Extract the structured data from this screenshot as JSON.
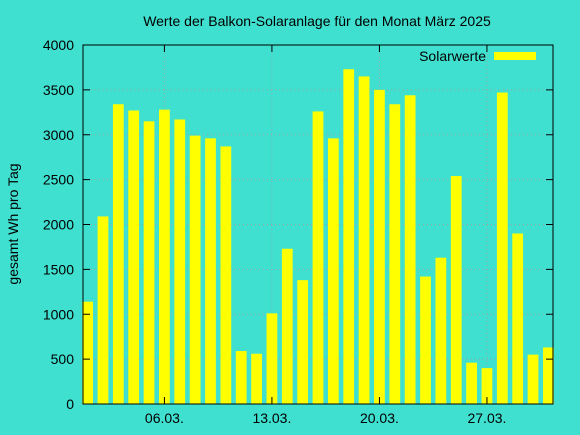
{
  "chart_data": {
    "type": "bar",
    "title": "Werte der Balkon-Solaranlage für den Monat März 2025",
    "xlabel": "",
    "ylabel": "gesamt Wh pro Tag",
    "ylim": [
      0,
      4000
    ],
    "yticks": [
      0,
      500,
      1000,
      1500,
      2000,
      2500,
      3000,
      3500,
      4000
    ],
    "xticks": [
      {
        "day": 6,
        "label": "06.03."
      },
      {
        "day": 13,
        "label": "13.03."
      },
      {
        "day": 20,
        "label": "20.03."
      },
      {
        "day": 27,
        "label": "27.03."
      }
    ],
    "xlim_days": [
      0.7,
      31.3
    ],
    "grid": true,
    "legend_position": "top-right",
    "series": [
      {
        "name": "Solarwerte",
        "color": "#ffff00",
        "days": [
          1,
          2,
          3,
          4,
          5,
          6,
          7,
          8,
          9,
          10,
          11,
          12,
          13,
          14,
          15,
          16,
          17,
          18,
          19,
          20,
          21,
          22,
          23,
          24,
          25,
          26,
          27,
          28,
          29,
          30,
          31
        ],
        "values": [
          1140,
          2090,
          3340,
          3270,
          3150,
          3280,
          3170,
          2990,
          2960,
          2870,
          590,
          560,
          1010,
          1730,
          1380,
          3260,
          2960,
          3730,
          3650,
          3500,
          3340,
          3440,
          1420,
          1630,
          2540,
          460,
          400,
          3470,
          1900,
          550,
          630
        ]
      }
    ]
  }
}
